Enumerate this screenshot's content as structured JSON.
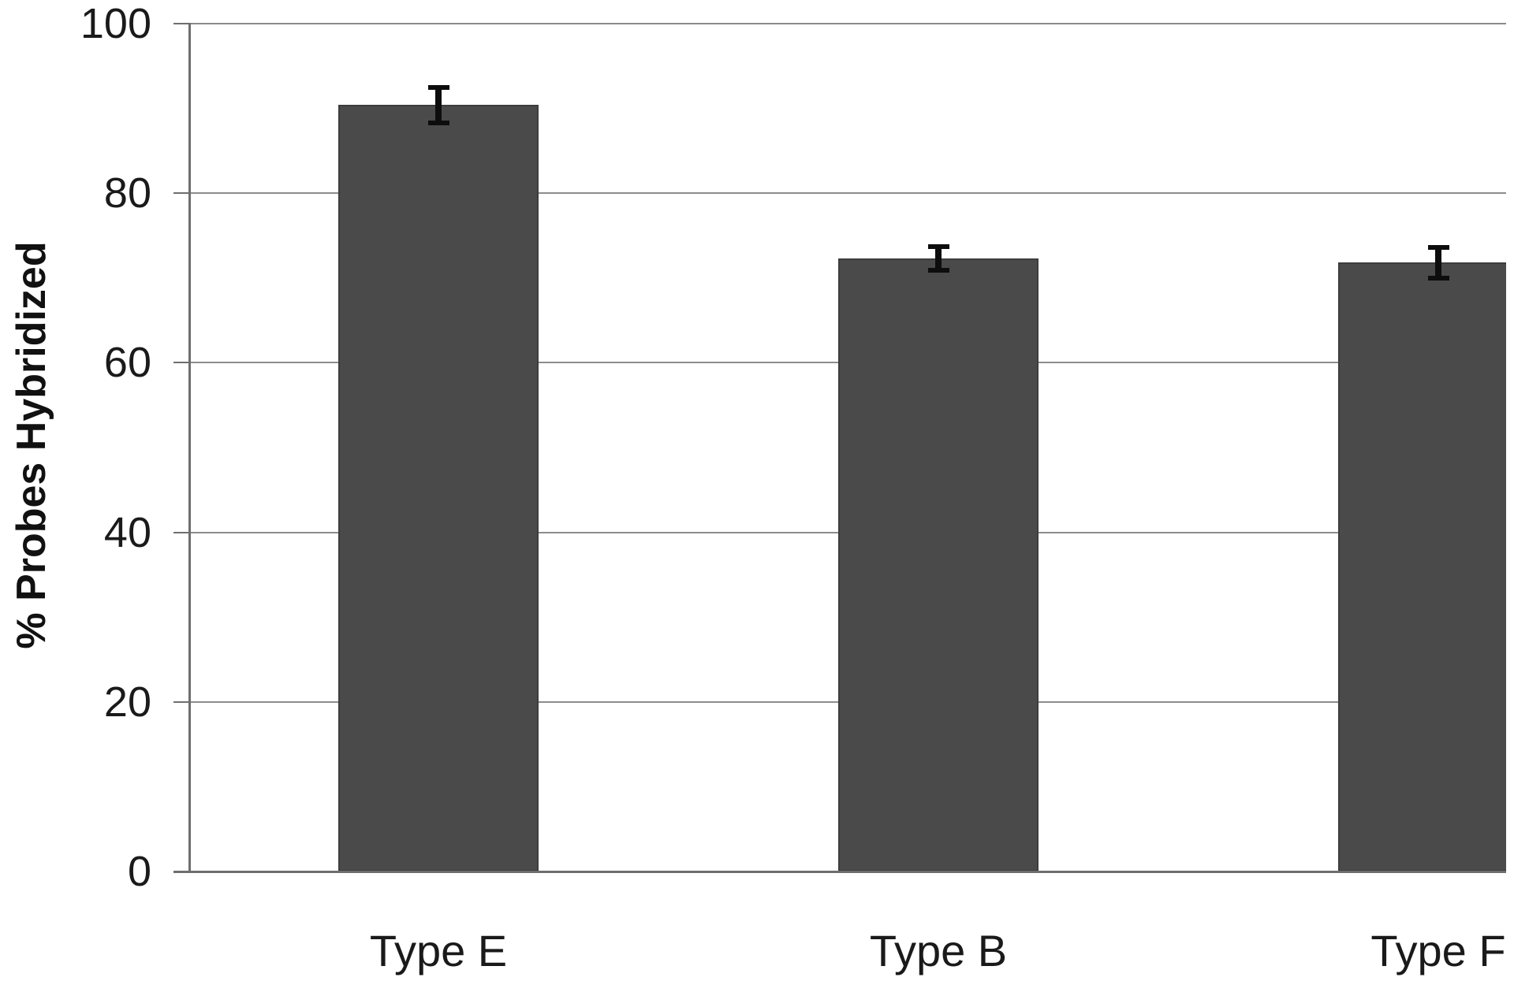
{
  "chart_data": {
    "type": "bar",
    "categories": [
      "Type E",
      "Type B",
      "Type F"
    ],
    "values": [
      90.4,
      72.3,
      71.8
    ],
    "errors": [
      2.1,
      1.4,
      1.8
    ],
    "title": "",
    "xlabel": "",
    "ylabel": "% Probes Hybridized",
    "ylim": [
      0,
      100
    ],
    "ytick_step": 20,
    "ytick_labels": [
      "0",
      "20",
      "40",
      "60",
      "80",
      "100"
    ],
    "grid": true,
    "legend": "none",
    "bar_color": "#4a4a4a",
    "bar_border_color": "#3d3d3d",
    "error_bar_color": "#0d0d0d",
    "gridline_color": "#8c8c8c",
    "axis_color": "#6e6e6e",
    "text_color": "#1a1a1a",
    "background": "#ffffff"
  }
}
